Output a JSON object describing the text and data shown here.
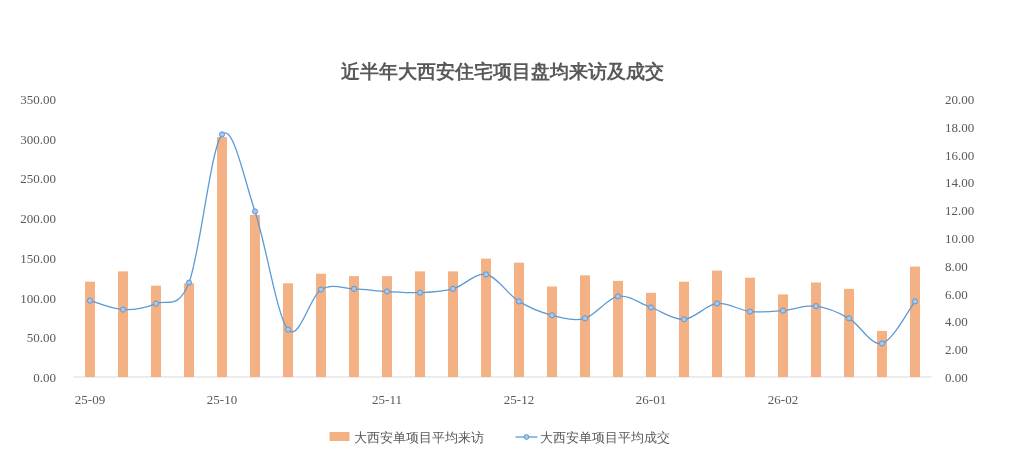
{
  "chart_data": {
    "type": "bar",
    "title": "近半年大西安住宅项目盘均来访及成交",
    "categories": [
      "25-09",
      null,
      null,
      null,
      "25-10",
      null,
      null,
      null,
      null,
      "25-11",
      null,
      null,
      null,
      "25-12",
      null,
      null,
      null,
      "26-01",
      null,
      null,
      null,
      "26-02",
      null,
      null,
      null,
      null
    ],
    "series": [
      {
        "name": "大西安单项目平均来访",
        "color": "#f4b183",
        "values": [
          120,
          133,
          115,
          118,
          302,
          204,
          118,
          130,
          127,
          127,
          133,
          133,
          149,
          144,
          114,
          128,
          121,
          106,
          120,
          134,
          125,
          104,
          119,
          111,
          58,
          139
        ]
      },
      {
        "name": "大西安单项目平均成交",
        "type": "line",
        "axis": "y2",
        "color": "#5b9bd5",
        "marker": "circle",
        "values": [
          5.5,
          4.85,
          5.28,
          6.79,
          17.45,
          11.91,
          3.41,
          6.29,
          6.34,
          6.15,
          6.07,
          6.34,
          7.38,
          5.44,
          4.44,
          4.22,
          5.8,
          5.0,
          4.15,
          5.29,
          4.71,
          4.78,
          5.1,
          4.22,
          2.41,
          5.44
        ]
      }
    ],
    "ylim": [
      0,
      350
    ],
    "yticks": [
      {
        "value": 0,
        "label": "0.00"
      },
      {
        "value": 50,
        "label": "50.00"
      },
      {
        "value": 100,
        "label": "100.00"
      },
      {
        "value": 150,
        "label": "150.00"
      },
      {
        "value": 200,
        "label": "200.00"
      },
      {
        "value": 250,
        "label": "250.00"
      },
      {
        "value": 300,
        "label": "300.00"
      },
      {
        "value": 350,
        "label": "350.00"
      }
    ],
    "y2lim": [
      0,
      20
    ],
    "y2ticks": [
      {
        "value": 0,
        "label": "0.00"
      },
      {
        "value": 2,
        "label": "2.00"
      },
      {
        "value": 4,
        "label": "4.00"
      },
      {
        "value": 6,
        "label": "6.00"
      },
      {
        "value": 8,
        "label": "8.00"
      },
      {
        "value": 10,
        "label": "10.00"
      },
      {
        "value": 12,
        "label": "12.00"
      },
      {
        "value": 14,
        "label": "14.00"
      },
      {
        "value": 16,
        "label": "16.00"
      },
      {
        "value": 18,
        "label": "18.00"
      },
      {
        "value": 20,
        "label": "20.00"
      }
    ],
    "grid": false,
    "legend": "bottom"
  }
}
